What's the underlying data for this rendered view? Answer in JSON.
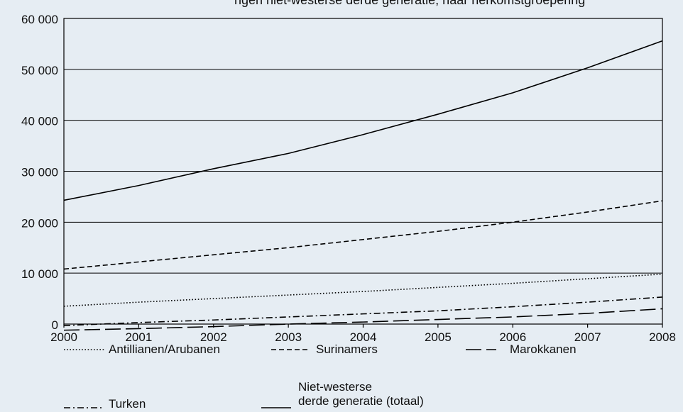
{
  "top_caption": "ngen niet-westerse derde generatie, naar herkomstgroepering",
  "chart_data": {
    "type": "line",
    "title": "",
    "xlabel": "",
    "ylabel": "",
    "x": [
      2000,
      2001,
      2002,
      2003,
      2004,
      2005,
      2006,
      2007,
      2008
    ],
    "xlim": [
      2000,
      2008
    ],
    "ylim": [
      0,
      60000
    ],
    "yticks": [
      0,
      10000,
      20000,
      30000,
      40000,
      50000,
      60000
    ],
    "ytick_labels": [
      "0",
      "10 000",
      "20 000",
      "30 000",
      "40 000",
      "50 000",
      "60 000"
    ],
    "xtick_labels": [
      "2000",
      "2001",
      "2002",
      "2003",
      "2004",
      "2005",
      "2006",
      "2007",
      "2008"
    ],
    "grid": "horizontal",
    "legend_position": "bottom",
    "series": [
      {
        "name": "Antillianen/Arubanen",
        "style": "dotted",
        "values": [
          3500,
          4300,
          5000,
          5700,
          6400,
          7200,
          8000,
          8900,
          9800
        ]
      },
      {
        "name": "Surinamers",
        "style": "dashed",
        "values": [
          10800,
          12200,
          13600,
          15000,
          16600,
          18200,
          20000,
          22000,
          24200
        ]
      },
      {
        "name": "Marokkanen",
        "style": "longdash",
        "values": [
          -1200,
          -900,
          -500,
          0,
          400,
          900,
          1400,
          2100,
          3000
        ]
      },
      {
        "name": "Turken",
        "style": "dashdot",
        "values": [
          -300,
          300,
          800,
          1400,
          2000,
          2600,
          3400,
          4300,
          5300
        ]
      },
      {
        "name": "Niet-westerse\nderde generatie (totaal)",
        "style": "solid",
        "values": [
          24300,
          27200,
          30500,
          33500,
          37200,
          41200,
          45400,
          50300,
          55600
        ]
      }
    ]
  }
}
